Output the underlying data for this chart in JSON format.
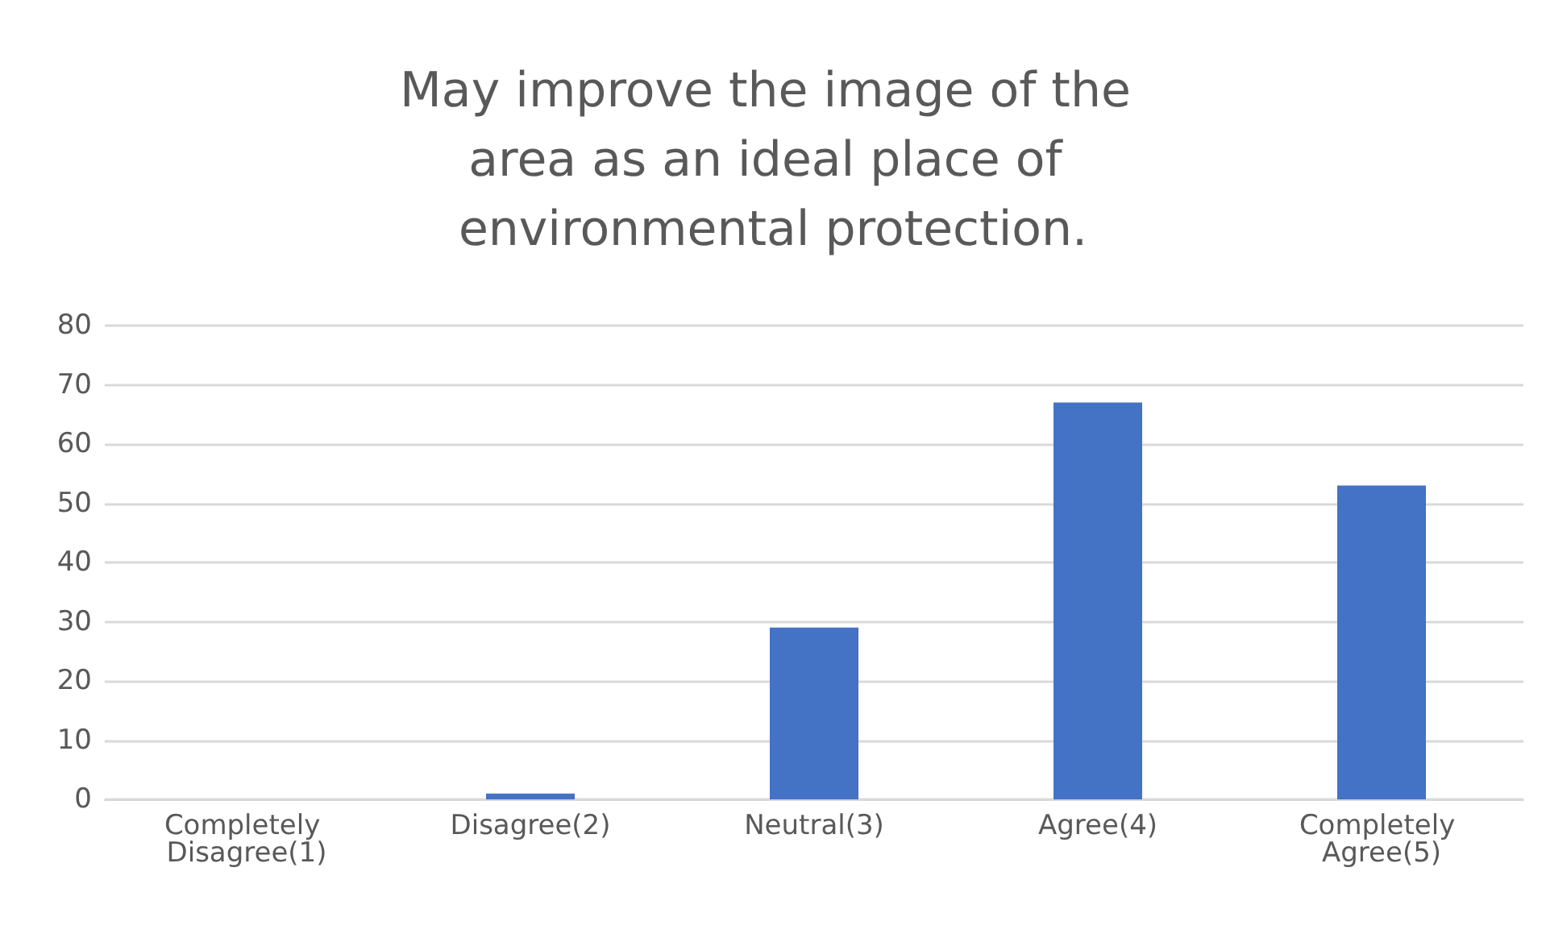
{
  "chart_data": {
    "type": "bar",
    "title": "May improve the image of the area as an ideal place of environmental protection.",
    "categories": [
      "Completely Disagree(1)",
      "Disagree(2)",
      "Neutral(3)",
      "Agree(4)",
      "Completely Agree(5)"
    ],
    "values": [
      0,
      1,
      29,
      67,
      53
    ],
    "color": "#4472c4",
    "ylim": [
      0,
      80
    ],
    "yticks": [
      0,
      10,
      20,
      30,
      40,
      50,
      60,
      70,
      80
    ],
    "grid": "y"
  }
}
